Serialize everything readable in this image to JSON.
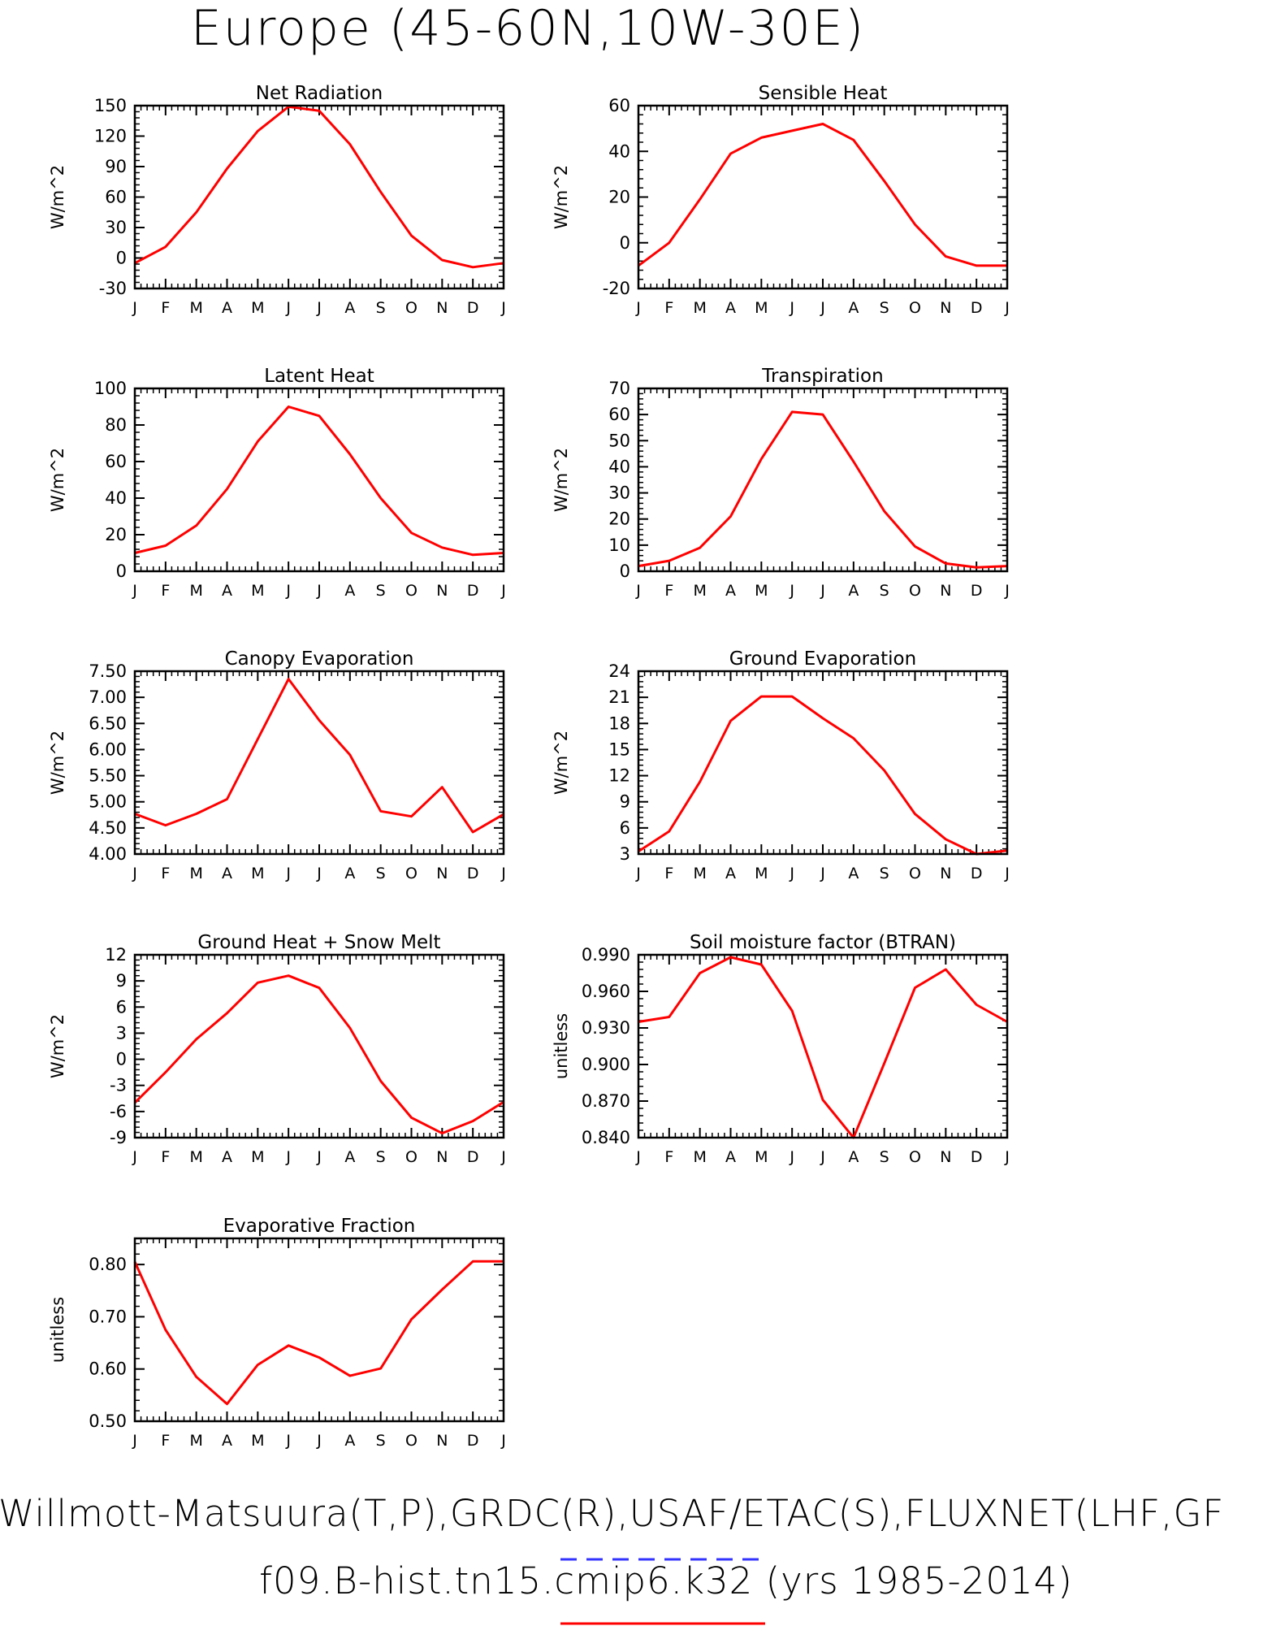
{
  "title": "Europe (45-60N,10W-30E)",
  "footer": {
    "obs_line": "Willmott-Matsuura(T,P),GRDC(R),USAF/ETAC(S),FLUXNET(LHF,GF",
    "model_line": "f09.B-hist.tn15.cmip6.k32 (yrs 1985-2014)",
    "obs_underline_color": "#3333ff",
    "model_underline_color": "#ff0000"
  },
  "colors": {
    "line": "#ff0000",
    "axis": "#000000"
  },
  "chart_data": [
    {
      "type": "line",
      "title": "Net Radiation",
      "ylabel": "W/m^2",
      "categories": [
        "J",
        "F",
        "M",
        "A",
        "M",
        "J",
        "J",
        "A",
        "S",
        "O",
        "N",
        "D",
        "J"
      ],
      "ylim": [
        -30,
        150
      ],
      "yticks": [
        "150",
        "120",
        "90",
        "60",
        "30",
        "0",
        "-30"
      ],
      "values": [
        -5,
        11,
        45,
        88,
        125,
        149,
        145,
        112,
        65,
        22,
        -2,
        -9,
        -5
      ]
    },
    {
      "type": "line",
      "title": "Sensible Heat",
      "ylabel": "W/m^2",
      "categories": [
        "J",
        "F",
        "M",
        "A",
        "M",
        "J",
        "J",
        "A",
        "S",
        "O",
        "N",
        "D",
        "J"
      ],
      "ylim": [
        -20,
        60
      ],
      "yticks": [
        "60",
        "40",
        "20",
        "0",
        "-20"
      ],
      "values": [
        -10,
        0,
        19,
        39,
        46,
        49,
        52,
        45,
        27,
        8,
        -6,
        -10,
        -10
      ]
    },
    {
      "type": "line",
      "title": "Latent Heat",
      "ylabel": "W/m^2",
      "categories": [
        "J",
        "F",
        "M",
        "A",
        "M",
        "J",
        "J",
        "A",
        "S",
        "O",
        "N",
        "D",
        "J"
      ],
      "ylim": [
        0,
        100
      ],
      "yticks": [
        "100",
        "80",
        "60",
        "40",
        "20",
        "0"
      ],
      "values": [
        10,
        14,
        25,
        45,
        71,
        90,
        85,
        64,
        40,
        21,
        13,
        9,
        10
      ]
    },
    {
      "type": "line",
      "title": "Transpiration",
      "ylabel": "W/m^2",
      "categories": [
        "J",
        "F",
        "M",
        "A",
        "M",
        "J",
        "J",
        "A",
        "S",
        "O",
        "N",
        "D",
        "J"
      ],
      "ylim": [
        0,
        70
      ],
      "yticks": [
        "70",
        "60",
        "50",
        "40",
        "30",
        "20",
        "10",
        "0"
      ],
      "values": [
        2,
        4,
        9,
        21,
        43,
        61,
        60,
        42,
        23,
        9.5,
        3,
        1.5,
        2
      ]
    },
    {
      "type": "line",
      "title": "Canopy Evaporation",
      "ylabel": "W/m^2",
      "categories": [
        "J",
        "F",
        "M",
        "A",
        "M",
        "J",
        "J",
        "A",
        "S",
        "O",
        "N",
        "D",
        "J"
      ],
      "ylim": [
        4.0,
        7.5
      ],
      "yticks": [
        "7.50",
        "7.00",
        "6.50",
        "6.00",
        "5.50",
        "5.00",
        "4.50",
        "4.00"
      ],
      "values": [
        4.77,
        4.55,
        4.77,
        5.05,
        6.2,
        7.35,
        6.56,
        5.9,
        4.82,
        4.72,
        5.28,
        4.42,
        4.76
      ]
    },
    {
      "type": "line",
      "title": "Ground Evaporation",
      "ylabel": "W/m^2",
      "categories": [
        "J",
        "F",
        "M",
        "A",
        "M",
        "J",
        "J",
        "A",
        "S",
        "O",
        "N",
        "D",
        "J"
      ],
      "ylim": [
        3,
        24
      ],
      "yticks": [
        "24",
        "21",
        "18",
        "15",
        "12",
        "9",
        "6",
        "3"
      ],
      "values": [
        3.3,
        5.6,
        11.3,
        18.3,
        21.1,
        21.1,
        18.6,
        16.3,
        12.6,
        7.6,
        4.7,
        3.0,
        3.4
      ]
    },
    {
      "type": "line",
      "title": "Ground Heat + Snow Melt",
      "ylabel": "W/m^2",
      "categories": [
        "J",
        "F",
        "M",
        "A",
        "M",
        "J",
        "J",
        "A",
        "S",
        "O",
        "N",
        "D",
        "J"
      ],
      "ylim": [
        -9,
        12
      ],
      "yticks": [
        "12",
        "9",
        "6",
        "3",
        "0",
        "-3",
        "-6",
        "-9"
      ],
      "values": [
        -5,
        -1.5,
        2.3,
        5.3,
        8.8,
        9.6,
        8.2,
        3.6,
        -2.5,
        -6.7,
        -8.5,
        -7.1,
        -4.9
      ]
    },
    {
      "type": "line",
      "title": "Soil moisture factor (BTRAN)",
      "ylabel": "unitless",
      "categories": [
        "J",
        "F",
        "M",
        "A",
        "M",
        "J",
        "J",
        "A",
        "S",
        "O",
        "N",
        "D",
        "J"
      ],
      "ylim": [
        0.84,
        0.99
      ],
      "yticks": [
        "0.990",
        "0.960",
        "0.930",
        "0.900",
        "0.870",
        "0.840"
      ],
      "values": [
        0.935,
        0.939,
        0.975,
        0.988,
        0.982,
        0.944,
        0.871,
        0.84,
        0.901,
        0.963,
        0.978,
        0.949,
        0.935
      ]
    },
    {
      "type": "line",
      "title": "Evaporative Fraction",
      "ylabel": "unitless",
      "categories": [
        "J",
        "F",
        "M",
        "A",
        "M",
        "J",
        "J",
        "A",
        "S",
        "O",
        "N",
        "D",
        "J"
      ],
      "ylim": [
        0.5,
        0.85
      ],
      "yticks": [
        "0.80",
        "0.70",
        "0.60",
        "0.50"
      ],
      "ytick_values": [
        0.8,
        0.7,
        0.6,
        0.5
      ],
      "values": [
        0.805,
        0.675,
        0.585,
        0.533,
        0.608,
        0.645,
        0.622,
        0.587,
        0.601,
        0.695,
        0.752,
        0.806,
        0.806
      ]
    }
  ]
}
